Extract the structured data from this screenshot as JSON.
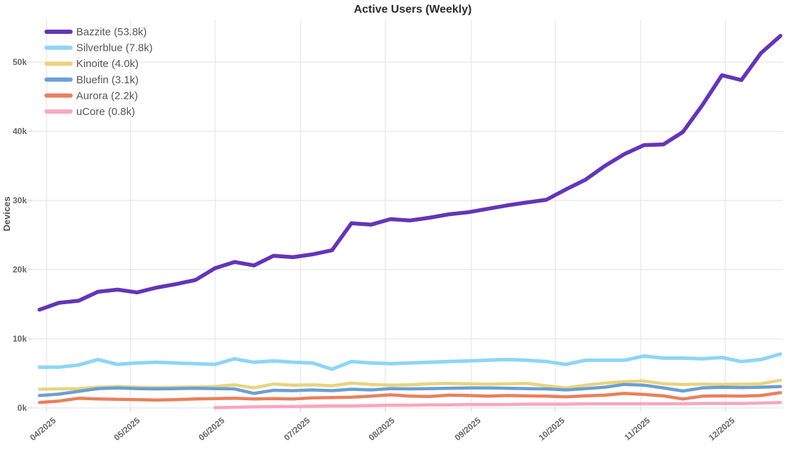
{
  "title": "Active Users (Weekly)",
  "y_axis": {
    "label": "Devices",
    "tick_labels": [
      "0k",
      "10k",
      "20k",
      "30k",
      "40k",
      "50k"
    ]
  },
  "x_axis": {
    "tick_labels": [
      "04/2025",
      "05/2025",
      "06/2025",
      "07/2025",
      "08/2025",
      "09/2025",
      "10/2025",
      "11/2025",
      "12/2025"
    ]
  },
  "legend": {
    "items": [
      {
        "label": "Bazzite (53.8k)"
      },
      {
        "label": "Silverblue (7.8k)"
      },
      {
        "label": "Kinoite (4.0k)"
      },
      {
        "label": "Bluefin (3.1k)"
      },
      {
        "label": "Aurora (2.2k)"
      },
      {
        "label": "uCore (0.8k)"
      }
    ]
  },
  "colors": {
    "grid": "#e2e2e2",
    "tick": "#cccccc",
    "bazzite": "#6435b8",
    "silverblue": "#8dd5f6",
    "kinoite": "#e8d47f",
    "bluefin": "#6b9fd3",
    "aurora": "#e9805d",
    "ucore": "#f9a6bf"
  },
  "chart_data": {
    "type": "line",
    "title": "Active Users (Weekly)",
    "xlabel": "",
    "ylabel": "Devices",
    "unit": "thousands of devices",
    "x_unit": "week",
    "ylim": [
      0,
      56
    ],
    "grid": true,
    "legend_position": "top-left",
    "x_tick_labels": [
      "04/2025",
      "05/2025",
      "06/2025",
      "07/2025",
      "08/2025",
      "09/2025",
      "10/2025",
      "11/2025",
      "12/2025"
    ],
    "y_tick_labels": [
      "0k",
      "10k",
      "20k",
      "30k",
      "40k",
      "50k"
    ],
    "series": [
      {
        "name": "Bazzite (53.8k)",
        "current_value_k": 53.8,
        "color": "#6435b8",
        "values_k": [
          14.2,
          15.2,
          15.5,
          16.8,
          17.1,
          16.7,
          17.4,
          17.9,
          18.5,
          20.2,
          21.1,
          20.6,
          22.0,
          21.8,
          22.2,
          22.8,
          26.7,
          26.5,
          27.3,
          27.1,
          27.5,
          28.0,
          28.3,
          28.8,
          29.3,
          29.7,
          30.1,
          31.6,
          33.0,
          35.0,
          36.7,
          38.0,
          38.1,
          39.9,
          43.8,
          48.1,
          47.4,
          51.3,
          53.8
        ]
      },
      {
        "name": "Silverblue (7.8k)",
        "current_value_k": 7.8,
        "color": "#8dd5f6",
        "values_k": [
          5.9,
          5.9,
          6.2,
          7.0,
          6.3,
          6.5,
          6.6,
          6.5,
          6.4,
          6.3,
          7.1,
          6.6,
          6.8,
          6.6,
          6.5,
          5.6,
          6.7,
          6.5,
          6.4,
          6.5,
          6.6,
          6.7,
          6.8,
          6.9,
          7.0,
          6.9,
          6.7,
          6.3,
          6.9,
          6.9,
          6.9,
          7.5,
          7.2,
          7.2,
          7.1,
          7.3,
          6.7,
          7.0,
          7.8
        ]
      },
      {
        "name": "Kinoite (4.0k)",
        "current_value_k": 4.0,
        "color": "#e8d47f",
        "values_k": [
          2.7,
          2.75,
          2.8,
          3.0,
          3.1,
          3.0,
          2.95,
          3.0,
          3.05,
          3.1,
          3.35,
          2.9,
          3.45,
          3.3,
          3.35,
          3.2,
          3.6,
          3.4,
          3.3,
          3.35,
          3.5,
          3.55,
          3.5,
          3.45,
          3.5,
          3.55,
          3.2,
          2.9,
          3.3,
          3.6,
          3.8,
          3.9,
          3.5,
          3.4,
          3.45,
          3.4,
          3.45,
          3.5,
          4.0
        ]
      },
      {
        "name": "Bluefin (3.1k)",
        "current_value_k": 3.1,
        "color": "#6b9fd3",
        "values_k": [
          1.8,
          2.0,
          2.4,
          2.8,
          2.9,
          2.8,
          2.75,
          2.8,
          2.85,
          2.8,
          2.75,
          2.1,
          2.55,
          2.5,
          2.6,
          2.5,
          2.7,
          2.6,
          2.8,
          2.75,
          2.8,
          2.85,
          2.9,
          2.9,
          2.85,
          2.8,
          2.75,
          2.6,
          2.8,
          3.0,
          3.4,
          3.3,
          2.9,
          2.45,
          2.9,
          3.0,
          2.95,
          3.0,
          3.1
        ]
      },
      {
        "name": "Aurora (2.2k)",
        "current_value_k": 2.2,
        "color": "#e9805d",
        "values_k": [
          0.8,
          1.0,
          1.4,
          1.3,
          1.25,
          1.2,
          1.15,
          1.2,
          1.3,
          1.35,
          1.4,
          1.3,
          1.35,
          1.3,
          1.45,
          1.5,
          1.55,
          1.7,
          1.9,
          1.7,
          1.65,
          1.85,
          1.8,
          1.7,
          1.8,
          1.75,
          1.7,
          1.6,
          1.75,
          1.85,
          2.1,
          1.95,
          1.75,
          1.3,
          1.7,
          1.75,
          1.7,
          1.8,
          2.2
        ]
      },
      {
        "name": "uCore (0.8k)",
        "current_value_k": 0.8,
        "color": "#f9a6bf",
        "values_k": [
          null,
          null,
          null,
          null,
          null,
          null,
          null,
          null,
          null,
          0.05,
          0.1,
          0.15,
          0.2,
          0.2,
          0.25,
          0.3,
          0.3,
          0.35,
          0.4,
          0.4,
          0.45,
          0.45,
          0.5,
          0.5,
          0.5,
          0.55,
          0.55,
          0.55,
          0.6,
          0.6,
          0.6,
          0.6,
          0.6,
          0.6,
          0.65,
          0.65,
          0.65,
          0.7,
          0.8
        ]
      }
    ]
  }
}
